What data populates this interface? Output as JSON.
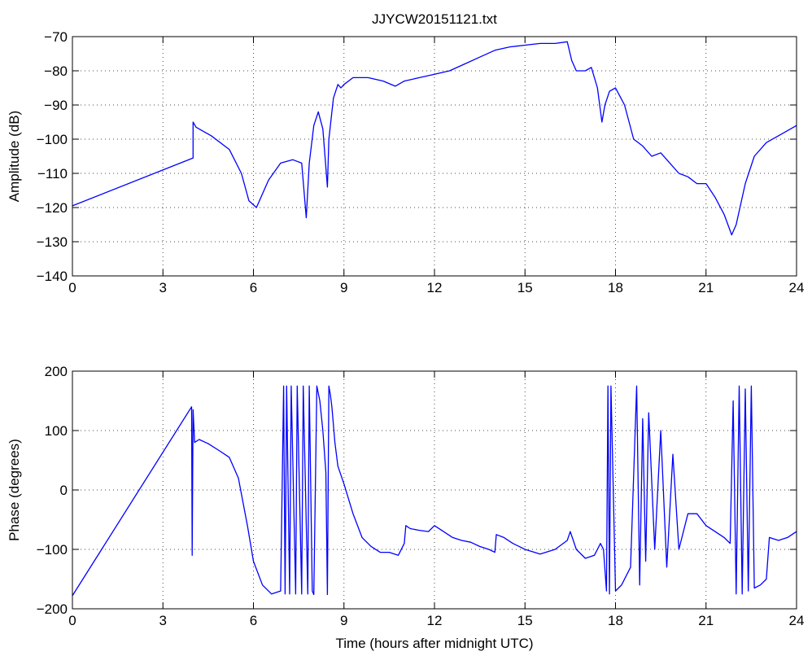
{
  "chart_data": [
    {
      "type": "line",
      "title": "JJYCW20151121.txt",
      "xlabel": "",
      "ylabel": "Amplitude (dB)",
      "xlim": [
        0,
        24
      ],
      "ylim": [
        -140,
        -70
      ],
      "xticks": [
        0,
        3,
        6,
        9,
        12,
        15,
        18,
        21,
        24
      ],
      "xtick_labels": [
        "0",
        "3",
        "6",
        "9",
        "12",
        "15",
        "18",
        "21",
        "24"
      ],
      "yticks": [
        -140,
        -130,
        -120,
        -110,
        -100,
        -90,
        -80,
        -70
      ],
      "ytick_labels": [
        "−140",
        "−130",
        "−120",
        "−110",
        "−100",
        "−90",
        "−80",
        "−70"
      ],
      "grid": true,
      "series": [
        {
          "color": "#0000ff",
          "x": [
            0,
            4.0,
            4.0,
            4.1,
            4.6,
            5.2,
            5.6,
            5.85,
            6.1,
            6.5,
            6.9,
            7.3,
            7.6,
            7.75,
            7.85,
            8.0,
            8.15,
            8.3,
            8.45,
            8.5,
            8.65,
            8.8,
            8.9,
            9.0,
            9.3,
            9.8,
            10.3,
            10.7,
            11.0,
            11.5,
            12.0,
            12.5,
            13.0,
            13.5,
            14.0,
            14.5,
            15.0,
            15.5,
            16.0,
            16.4,
            16.55,
            16.7,
            17.0,
            17.2,
            17.4,
            17.55,
            17.65,
            17.8,
            18.0,
            18.3,
            18.6,
            18.9,
            19.2,
            19.5,
            19.8,
            20.1,
            20.4,
            20.7,
            21.0,
            21.3,
            21.6,
            21.85,
            22.0,
            22.3,
            22.6,
            23.0,
            23.4,
            23.8,
            24.0
          ],
          "y": [
            -119.5,
            -105.5,
            -95,
            -96.5,
            -99,
            -103,
            -110,
            -118,
            -120,
            -112,
            -107,
            -106,
            -107,
            -123,
            -107,
            -96,
            -92,
            -97,
            -114,
            -100,
            -88,
            -84,
            -85,
            -84,
            -82,
            -82,
            -83,
            -84.5,
            -83,
            -82,
            -81,
            -80,
            -78,
            -76,
            -74,
            -73,
            -72.5,
            -72,
            -72,
            -71.5,
            -77,
            -80,
            -80,
            -79,
            -85,
            -95,
            -90,
            -86,
            -85,
            -90,
            -100,
            -102,
            -105,
            -104,
            -107,
            -110,
            -111,
            -113,
            -113,
            -117,
            -122,
            -128,
            -125,
            -113,
            -105,
            -101,
            -99,
            -97,
            -96
          ]
        }
      ]
    },
    {
      "type": "line",
      "title": "",
      "xlabel": "Time (hours after midnight UTC)",
      "ylabel": "Phase (degrees)",
      "xlim": [
        0,
        24
      ],
      "ylim": [
        -200,
        200
      ],
      "xticks": [
        0,
        3,
        6,
        9,
        12,
        15,
        18,
        21,
        24
      ],
      "xtick_labels": [
        "0",
        "3",
        "6",
        "9",
        "12",
        "15",
        "18",
        "21",
        "24"
      ],
      "yticks": [
        -200,
        -100,
        0,
        100,
        200
      ],
      "ytick_labels": [
        "−200",
        "−100",
        "0",
        "100",
        "200"
      ],
      "grid": true,
      "series": [
        {
          "color": "#0000ff",
          "x": [
            0,
            3.95,
            3.97,
            4.0,
            4.05,
            4.2,
            4.5,
            4.9,
            5.2,
            5.5,
            5.8,
            6.0,
            6.3,
            6.6,
            6.9,
            7.0,
            7.05,
            7.1,
            7.2,
            7.25,
            7.4,
            7.45,
            7.6,
            7.65,
            7.8,
            7.85,
            7.95,
            8.0,
            8.1,
            8.2,
            8.3,
            8.4,
            8.45,
            8.5,
            8.55,
            8.6,
            8.7,
            8.8,
            9.0,
            9.3,
            9.6,
            9.9,
            10.2,
            10.5,
            10.8,
            11.0,
            11.05,
            11.2,
            11.5,
            11.8,
            12.0,
            12.3,
            12.6,
            12.9,
            13.2,
            13.5,
            13.8,
            14.0,
            14.05,
            14.3,
            14.6,
            15.0,
            15.5,
            16.0,
            16.4,
            16.5,
            16.7,
            17.0,
            17.3,
            17.5,
            17.6,
            17.7,
            17.75,
            17.8,
            17.85,
            18.0,
            18.2,
            18.5,
            18.7,
            18.8,
            18.9,
            19.0,
            19.1,
            19.3,
            19.5,
            19.7,
            19.9,
            20.1,
            20.4,
            20.7,
            21.0,
            21.3,
            21.6,
            21.8,
            21.9,
            22.0,
            22.1,
            22.2,
            22.3,
            22.4,
            22.5,
            22.6,
            22.8,
            23.0,
            23.1,
            23.4,
            23.7,
            24.0
          ],
          "y": [
            -178,
            140,
            -110,
            135,
            80,
            85,
            78,
            65,
            55,
            20,
            -60,
            -120,
            -160,
            -175,
            -170,
            175,
            -175,
            175,
            -175,
            175,
            -175,
            175,
            -175,
            175,
            -175,
            175,
            -170,
            -176,
            175,
            150,
            100,
            30,
            -176,
            175,
            160,
            140,
            80,
            40,
            10,
            -40,
            -80,
            -95,
            -105,
            -105,
            -110,
            -90,
            -60,
            -65,
            -68,
            -70,
            -60,
            -70,
            -80,
            -85,
            -88,
            -95,
            -100,
            -105,
            -75,
            -80,
            -90,
            -100,
            -108,
            -100,
            -85,
            -70,
            -100,
            -115,
            -110,
            -90,
            -100,
            -170,
            175,
            -175,
            175,
            -170,
            -160,
            -130,
            175,
            -160,
            120,
            -120,
            130,
            -100,
            100,
            -130,
            60,
            -100,
            -40,
            -40,
            -60,
            -70,
            -80,
            -90,
            150,
            -175,
            175,
            -175,
            170,
            -170,
            175,
            -165,
            -160,
            -150,
            -80,
            -85,
            -80,
            -70
          ]
        }
      ]
    }
  ]
}
